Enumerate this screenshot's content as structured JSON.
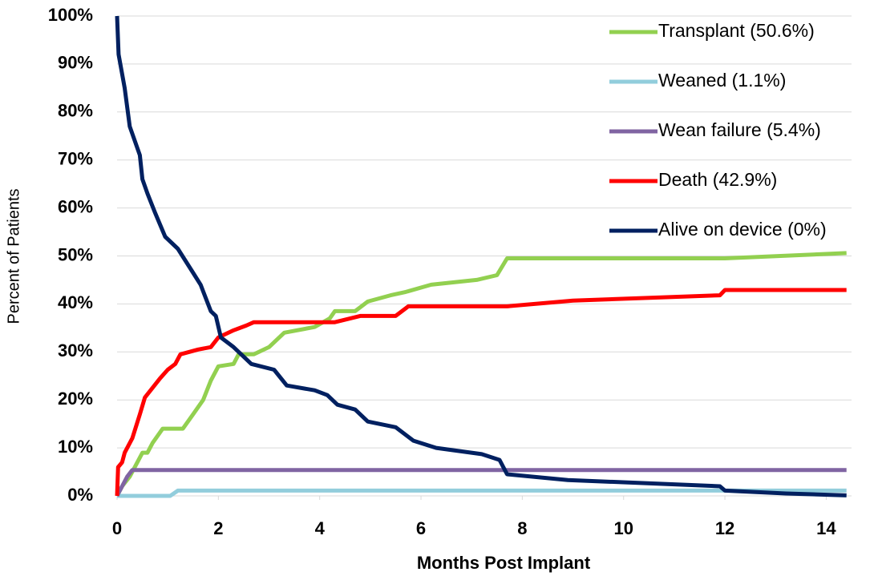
{
  "chart_data": {
    "type": "line",
    "xlabel": "Months Post Implant",
    "ylabel": "Percent of Patients",
    "xlim": [
      0,
      14.5
    ],
    "xticks": [
      0,
      2,
      4,
      6,
      8,
      10,
      12,
      14
    ],
    "ylim": [
      0,
      100
    ],
    "yticks": [
      {
        "value": 0,
        "label": "0%"
      },
      {
        "value": 10,
        "label": "10%"
      },
      {
        "value": 20,
        "label": "20%"
      },
      {
        "value": 30,
        "label": "30%"
      },
      {
        "value": 40,
        "label": "40%"
      },
      {
        "value": 50,
        "label": "50%"
      },
      {
        "value": 60,
        "label": "60%"
      },
      {
        "value": 70,
        "label": "70%"
      },
      {
        "value": 80,
        "label": "80%"
      },
      {
        "value": 90,
        "label": "90%"
      },
      {
        "value": 100,
        "label": "100%"
      }
    ],
    "grid": true,
    "legend": "top-right",
    "series": [
      {
        "name": "Transplant (50.6%)",
        "color": "#92d050",
        "x": [
          0,
          0.1,
          0.25,
          0.4,
          0.5,
          0.6,
          0.7,
          0.9,
          1.3,
          1.5,
          1.7,
          1.85,
          2.0,
          2.3,
          2.4,
          2.7,
          3.0,
          3.3,
          3.9,
          4.2,
          4.3,
          4.7,
          4.95,
          5.4,
          5.7,
          6.2,
          7.1,
          7.5,
          7.7,
          12,
          14.4
        ],
        "values": [
          0,
          2,
          4,
          7,
          9,
          9,
          11,
          14,
          14,
          17,
          20,
          24,
          27,
          27.5,
          29.5,
          29.5,
          31,
          34,
          35.2,
          37,
          38.5,
          38.5,
          40.5,
          41.8,
          42.5,
          44,
          45,
          46,
          49.5,
          49.5,
          50.6
        ]
      },
      {
        "name": "Weaned (1.1%)",
        "color": "#92cddc",
        "x": [
          0,
          1.05,
          1.2,
          14.4
        ],
        "values": [
          0,
          0,
          1.1,
          1.1
        ]
      },
      {
        "name": "Wean failure (5.4%)",
        "color": "#8064a2",
        "x": [
          0,
          0.1,
          0.2,
          0.3,
          14.4
        ],
        "values": [
          0,
          2,
          4,
          5.4,
          5.4
        ]
      },
      {
        "name": "Death (42.9%)",
        "color": "#ff0000",
        "x": [
          0,
          0.02,
          0.1,
          0.15,
          0.3,
          0.45,
          0.55,
          0.7,
          0.85,
          1.0,
          1.15,
          1.25,
          1.6,
          1.85,
          2.0,
          2.3,
          2.55,
          2.7,
          4.3,
          4.8,
          5.5,
          5.75,
          7.7,
          9,
          11.9,
          12,
          14.4
        ],
        "values": [
          0,
          6,
          7,
          9,
          12,
          17,
          20.5,
          22.5,
          24.5,
          26.3,
          27.5,
          29.5,
          30.5,
          31,
          33,
          34.5,
          35.5,
          36.2,
          36.2,
          37.5,
          37.5,
          39.5,
          39.5,
          40.7,
          41.8,
          42.9,
          42.9
        ]
      },
      {
        "name": "Alive on device (0%)",
        "color": "#002060",
        "x": [
          0,
          0.03,
          0.15,
          0.25,
          0.45,
          0.5,
          0.6,
          0.75,
          0.95,
          1.2,
          1.5,
          1.65,
          1.85,
          1.95,
          2.05,
          2.3,
          2.45,
          2.65,
          3.1,
          3.35,
          3.9,
          4.15,
          4.35,
          4.7,
          4.95,
          5.5,
          5.85,
          6.3,
          7.2,
          7.55,
          7.7,
          8.9,
          11.9,
          12,
          13.2,
          14.4
        ],
        "values": [
          100,
          92,
          85,
          77,
          71,
          66,
          63,
          59,
          54,
          51.5,
          46.5,
          44,
          38.5,
          37.5,
          33,
          31,
          29.5,
          27.5,
          26.3,
          23,
          22,
          21,
          19,
          18,
          15.5,
          14.3,
          11.5,
          10,
          8.7,
          7.5,
          4.5,
          3.3,
          2,
          1.1,
          0.5,
          0.1
        ]
      }
    ]
  }
}
